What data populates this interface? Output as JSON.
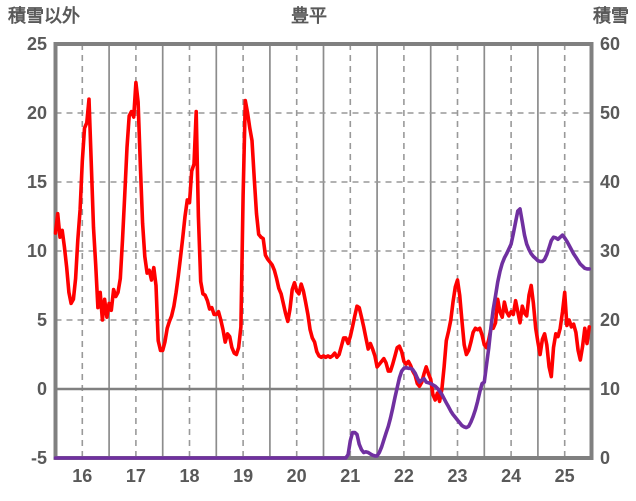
{
  "header": {
    "left_label": "積雪以外",
    "title": "豊平",
    "right_label": "積雪"
  },
  "colors": {
    "background": "#ffffff",
    "border": "#808080",
    "grid": "#999999",
    "grid_solid": "#8c8c8c",
    "zero_line": "#808080",
    "text": "#595959",
    "series_other": "#ff0000",
    "series_snow": "#7030a0"
  },
  "chart_data": {
    "type": "line",
    "title": "豊平",
    "xlabel": "",
    "ylabel_left": "積雪以外",
    "ylabel_right": "積雪",
    "x_axis": {
      "tick_labels": [
        "16",
        "17",
        "18",
        "19",
        "20",
        "21",
        "22",
        "23",
        "24",
        "25"
      ],
      "days": 10,
      "points_per_day": 24,
      "grid": "solid lines at day boundaries, dashed lines at half-days"
    },
    "left_axis": {
      "title": "積雪以外",
      "min": -5,
      "max": 25,
      "ticks": [
        25,
        20,
        15,
        10,
        5,
        0,
        -5
      ],
      "dashed_gridlines": [
        20,
        15,
        10,
        5
      ],
      "solid_gridlines": [
        0
      ]
    },
    "right_axis": {
      "title": "積雪",
      "min": 0,
      "max": 60,
      "ticks": [
        60,
        50,
        40,
        30,
        20,
        10,
        0
      ]
    },
    "series": [
      {
        "name": "積雪以外",
        "axis": "left",
        "color": "#ff0000",
        "values": [
          11.3,
          12.7,
          11.0,
          11.5,
          10.3,
          8.8,
          7.0,
          6.2,
          6.5,
          8.0,
          10.8,
          13.0,
          16.5,
          18.9,
          19.3,
          21.0,
          16.5,
          11.7,
          9.0,
          5.9,
          7.0,
          5.0,
          6.5,
          5.2,
          6.2,
          5.7,
          7.2,
          6.7,
          7.0,
          8.0,
          10.8,
          14.0,
          17.5,
          19.8,
          20.1,
          19.7,
          22.2,
          20.8,
          16.1,
          12.0,
          9.6,
          8.4,
          8.6,
          7.9,
          8.8,
          7.5,
          3.5,
          2.8,
          2.8,
          3.4,
          4.4,
          4.9,
          5.3,
          6.0,
          7.0,
          8.2,
          9.6,
          11.0,
          12.5,
          13.7,
          13.5,
          15.8,
          16.3,
          20.1,
          12.5,
          7.8,
          6.9,
          6.8,
          6.4,
          5.8,
          5.9,
          5.4,
          5.4,
          5.6,
          5.0,
          4.3,
          3.4,
          4.0,
          3.8,
          3.0,
          2.6,
          2.5,
          3.0,
          4.5,
          14.0,
          20.9,
          20.0,
          18.9,
          18.0,
          15.2,
          12.7,
          11.2,
          11.0,
          10.9,
          9.7,
          9.4,
          9.2,
          9.0,
          8.6,
          8.0,
          7.3,
          6.9,
          6.2,
          5.5,
          4.9,
          5.8,
          7.2,
          7.7,
          7.1,
          6.9,
          7.6,
          7.1,
          6.3,
          5.4,
          4.3,
          3.7,
          3.4,
          2.7,
          2.4,
          2.3,
          2.4,
          2.3,
          2.4,
          2.3,
          2.4,
          2.6,
          2.3,
          2.5,
          3.1,
          3.7,
          3.7,
          3.3,
          3.8,
          4.5,
          5.3,
          6.0,
          5.9,
          5.2,
          4.5,
          3.7,
          2.9,
          3.3,
          2.9,
          2.4,
          1.6,
          1.8,
          2.0,
          2.2,
          1.9,
          1.3,
          1.3,
          1.8,
          2.4,
          3.0,
          3.1,
          2.7,
          2.0,
          1.8,
          2.0,
          1.7,
          1.3,
          1.0,
          0.4,
          0.2,
          0.5,
          1.1,
          1.6,
          1.1,
          0.7,
          -0.4,
          -0.8,
          -0.3,
          -0.9,
          0.0,
          1.6,
          3.5,
          4.2,
          5.0,
          6.3,
          7.4,
          7.9,
          6.8,
          4.9,
          3.2,
          2.5,
          2.8,
          3.4,
          4.1,
          4.4,
          4.3,
          4.4,
          3.9,
          3.2,
          3.0,
          3.6,
          4.4,
          4.4,
          4.8,
          6.5,
          5.6,
          5.2,
          6.3,
          5.6,
          5.3,
          5.6,
          5.4,
          6.4,
          5.6,
          4.8,
          6.0,
          5.5,
          5.3,
          6.8,
          7.5,
          6.2,
          4.4,
          3.4,
          2.5,
          3.6,
          4.0,
          3.2,
          1.6,
          0.9,
          3.0,
          4.0,
          3.8,
          4.4,
          5.6,
          7.0,
          4.6,
          5.0,
          4.5,
          4.7,
          4.1,
          2.8,
          2.1,
          3.1,
          4.4,
          3.3,
          4.5
        ]
      },
      {
        "name": "積雪",
        "axis": "right",
        "color": "#7030a0",
        "values": [
          0,
          0,
          0,
          0,
          0,
          0,
          0,
          0,
          0,
          0,
          0,
          0,
          0,
          0,
          0,
          0,
          0,
          0,
          0,
          0,
          0,
          0,
          0,
          0,
          0,
          0,
          0,
          0,
          0,
          0,
          0,
          0,
          0,
          0,
          0,
          0,
          0,
          0,
          0,
          0,
          0,
          0,
          0,
          0,
          0,
          0,
          0,
          0,
          0,
          0,
          0,
          0,
          0,
          0,
          0,
          0,
          0,
          0,
          0,
          0,
          0,
          0,
          0,
          0,
          0,
          0,
          0,
          0,
          0,
          0,
          0,
          0,
          0,
          0,
          0,
          0,
          0,
          0,
          0,
          0,
          0,
          0,
          0,
          0,
          0,
          0,
          0,
          0,
          0,
          0,
          0,
          0,
          0,
          0,
          0,
          0,
          0,
          0,
          0,
          0,
          0,
          0,
          0,
          0,
          0,
          0,
          0,
          0,
          0,
          0,
          0,
          0,
          0,
          0,
          0,
          0,
          0,
          0,
          0,
          0,
          0,
          0,
          0,
          0,
          0,
          0,
          0,
          0,
          0,
          0,
          0,
          0.5,
          2.5,
          3.7,
          3.7,
          3.4,
          2.0,
          1.2,
          0.8,
          0.9,
          0.8,
          0.6,
          0.4,
          0.3,
          0.3,
          0.8,
          1.6,
          2.6,
          3.6,
          4.6,
          5.8,
          7.2,
          8.8,
          10.2,
          11.6,
          12.6,
          13.0,
          13.1,
          13.0,
          13.0,
          12.8,
          12.3,
          11.6,
          11.0,
          11.3,
          11.5,
          11.0,
          10.9,
          10.8,
          10.6,
          10.4,
          10.1,
          9.7,
          9.2,
          8.6,
          8.0,
          7.4,
          6.8,
          6.3,
          5.9,
          5.5,
          5.1,
          4.7,
          4.5,
          4.4,
          4.6,
          5.2,
          6.0,
          7.0,
          8.2,
          9.6,
          10.8,
          11.0,
          13.5,
          16.0,
          19.0,
          21.5,
          23.5,
          25.5,
          27.0,
          28.2,
          29.0,
          29.6,
          30.3,
          31.0,
          32.5,
          34.2,
          35.8,
          36.1,
          34.2,
          32.3,
          31.0,
          30.2,
          29.6,
          29.2,
          28.9,
          28.6,
          28.5,
          28.5,
          28.8,
          29.5,
          30.5,
          31.5,
          32.0,
          31.9,
          31.7,
          32.0,
          32.3,
          31.9,
          31.4,
          30.8,
          30.2,
          29.6,
          29.1,
          28.6,
          28.1,
          27.8,
          27.5,
          27.4,
          27.4
        ]
      }
    ]
  }
}
